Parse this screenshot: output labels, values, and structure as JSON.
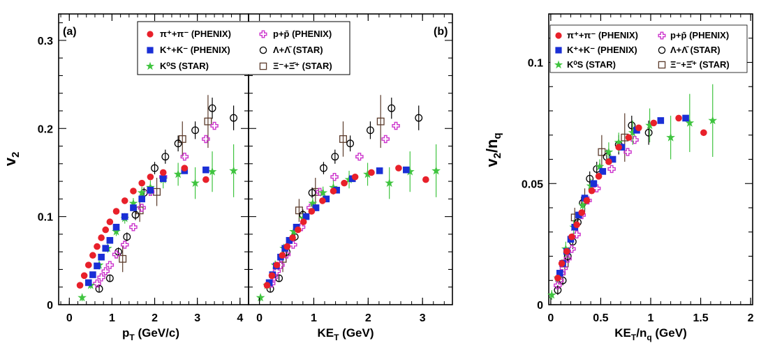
{
  "figure": {
    "common_ylabel": "v2",
    "panels_ab_ylim": [
      0,
      0.33
    ],
    "panels_ab_yticks": [
      "0",
      "0.1",
      "0.2",
      "0.3"
    ],
    "panel_c_ylim": [
      0,
      0.12
    ],
    "panel_c_yticks": [
      "0",
      "0.05",
      "0.1"
    ]
  },
  "legend_entries": [
    {
      "key": "pion",
      "label": "π⁺+π⁻ (PHENIX)",
      "marker": "filled-circle",
      "color": "#e8202a"
    },
    {
      "key": "proton",
      "label": "p+p̄ (PHENIX)",
      "marker": "open-cross",
      "color": "#cc33cc"
    },
    {
      "key": "kaon",
      "label": "K⁺+K⁻ (PHENIX)",
      "marker": "filled-square",
      "color": "#1a2fd6"
    },
    {
      "key": "lambda",
      "label": "Λ+Λ̄ (STAR)",
      "marker": "open-circle",
      "color": "#000000"
    },
    {
      "key": "k0s",
      "label": "K⁰S (STAR)",
      "marker": "filled-star",
      "color": "#3fc43f"
    },
    {
      "key": "xi",
      "label": "Ξ⁻+Ξ̄⁺ (STAR)",
      "marker": "open-square",
      "color": "#5a3a2a"
    }
  ],
  "chart_data": [
    {
      "type": "scatter",
      "panel_label": "(a)",
      "xlabel": "pT (GeV/c)",
      "ylabel": "v2",
      "xlim": [
        -0.25,
        4.2
      ],
      "ylim": [
        0,
        0.33
      ],
      "xticks": [
        "0",
        "1",
        "2",
        "3",
        "4"
      ],
      "series": [
        {
          "name": "π⁺+π⁻ (PHENIX)",
          "key": "pion",
          "x": [
            0.25,
            0.35,
            0.45,
            0.55,
            0.65,
            0.75,
            0.85,
            0.95,
            1.1,
            1.3,
            1.5,
            1.7,
            1.9,
            2.2,
            2.7,
            3.2
          ],
          "y": [
            0.022,
            0.033,
            0.045,
            0.056,
            0.066,
            0.076,
            0.085,
            0.094,
            0.106,
            0.118,
            0.129,
            0.138,
            0.145,
            0.15,
            0.155,
            0.142
          ]
        },
        {
          "name": "K⁺+K⁻ (PHENIX)",
          "key": "kaon",
          "x": [
            0.45,
            0.55,
            0.65,
            0.75,
            0.85,
            0.95,
            1.1,
            1.3,
            1.5,
            1.7,
            1.9,
            2.2,
            2.7,
            3.2
          ],
          "y": [
            0.025,
            0.034,
            0.044,
            0.054,
            0.064,
            0.073,
            0.088,
            0.1,
            0.11,
            0.12,
            0.13,
            0.143,
            0.152,
            0.153
          ]
        },
        {
          "name": "K⁰S (STAR)",
          "key": "k0s",
          "x": [
            0.3,
            0.5,
            0.7,
            0.9,
            1.1,
            1.3,
            1.5,
            1.7,
            1.9,
            2.2,
            2.55,
            2.95,
            3.35,
            3.85
          ],
          "y": [
            0.008,
            0.022,
            0.045,
            0.064,
            0.083,
            0.098,
            0.115,
            0.127,
            0.133,
            0.142,
            0.148,
            0.138,
            0.151,
            0.152
          ],
          "err": [
            0.004,
            0.004,
            0.005,
            0.005,
            0.005,
            0.006,
            0.006,
            0.007,
            0.008,
            0.01,
            0.013,
            0.018,
            0.023,
            0.03
          ]
        },
        {
          "name": "p+p̄ (PHENIX)",
          "key": "proton",
          "x": [
            0.65,
            0.75,
            0.85,
            0.95,
            1.1,
            1.3,
            1.5,
            1.7,
            1.9,
            2.2,
            2.7,
            3.2,
            3.4
          ],
          "y": [
            0.024,
            0.031,
            0.038,
            0.045,
            0.057,
            0.068,
            0.088,
            0.11,
            0.128,
            0.145,
            0.168,
            0.188,
            0.203
          ]
        },
        {
          "name": "Λ+Λ̄ (STAR)",
          "key": "lambda",
          "x": [
            0.7,
            0.95,
            1.15,
            1.35,
            1.55,
            1.75,
            2.0,
            2.25,
            2.55,
            2.95,
            3.35,
            3.85
          ],
          "y": [
            0.018,
            0.03,
            0.06,
            0.077,
            0.102,
            0.127,
            0.155,
            0.168,
            0.183,
            0.198,
            0.223,
            0.212
          ],
          "err": [
            0.004,
            0.004,
            0.005,
            0.005,
            0.006,
            0.006,
            0.007,
            0.008,
            0.009,
            0.01,
            0.012,
            0.014
          ]
        },
        {
          "name": "Ξ⁻+Ξ̄⁺ (STAR)",
          "key": "xi",
          "x": [
            1.25,
            1.65,
            2.05,
            2.65,
            3.25
          ],
          "y": [
            0.052,
            0.107,
            0.128,
            0.188,
            0.208
          ],
          "err": [
            0.015,
            0.013,
            0.016,
            0.02,
            0.03
          ]
        }
      ]
    },
    {
      "type": "scatter",
      "panel_label": "(b)",
      "xlabel": "KET (GeV)",
      "ylabel": "v2",
      "xlim": [
        -0.2,
        3.55
      ],
      "ylim": [
        0,
        0.33
      ],
      "xticks": [
        "0",
        "1",
        "2",
        "3"
      ],
      "series": [
        {
          "name": "π⁺+π⁻ (PHENIX)",
          "key": "pion",
          "x": [
            0.14,
            0.23,
            0.32,
            0.42,
            0.51,
            0.61,
            0.71,
            0.81,
            0.96,
            1.16,
            1.36,
            1.56,
            1.76,
            2.06,
            2.56,
            3.06
          ],
          "y": [
            0.022,
            0.033,
            0.045,
            0.056,
            0.066,
            0.076,
            0.085,
            0.094,
            0.106,
            0.118,
            0.129,
            0.138,
            0.145,
            0.15,
            0.155,
            0.142
          ]
        },
        {
          "name": "K⁺+K⁻ (PHENIX)",
          "key": "kaon",
          "x": [
            0.18,
            0.24,
            0.31,
            0.39,
            0.47,
            0.55,
            0.68,
            0.86,
            1.04,
            1.23,
            1.42,
            1.71,
            2.21,
            2.7
          ],
          "y": [
            0.025,
            0.034,
            0.044,
            0.054,
            0.064,
            0.073,
            0.088,
            0.1,
            0.11,
            0.12,
            0.13,
            0.143,
            0.152,
            0.153
          ]
        },
        {
          "name": "K⁰S (STAR)",
          "key": "k0s",
          "x": [
            0.02,
            0.14,
            0.29,
            0.45,
            0.63,
            0.8,
            0.98,
            1.17,
            1.36,
            1.65,
            1.99,
            2.39,
            2.77,
            3.25
          ],
          "y": [
            0.008,
            0.022,
            0.045,
            0.064,
            0.083,
            0.098,
            0.115,
            0.127,
            0.133,
            0.142,
            0.148,
            0.138,
            0.151,
            0.152
          ],
          "err": [
            0.004,
            0.004,
            0.005,
            0.005,
            0.005,
            0.006,
            0.006,
            0.007,
            0.008,
            0.01,
            0.013,
            0.018,
            0.023,
            0.03
          ]
        },
        {
          "name": "p+p̄ (PHENIX)",
          "key": "proton",
          "x": [
            0.22,
            0.27,
            0.32,
            0.39,
            0.5,
            0.62,
            0.77,
            0.94,
            1.11,
            1.38,
            1.84,
            2.32,
            2.51
          ],
          "y": [
            0.024,
            0.031,
            0.038,
            0.045,
            0.057,
            0.068,
            0.088,
            0.11,
            0.128,
            0.145,
            0.168,
            0.188,
            0.203
          ]
        },
        {
          "name": "Λ+Λ̄ (STAR)",
          "key": "lambda",
          "x": [
            0.2,
            0.36,
            0.5,
            0.65,
            0.8,
            0.97,
            1.18,
            1.39,
            1.67,
            2.04,
            2.43,
            2.93
          ],
          "y": [
            0.018,
            0.03,
            0.06,
            0.077,
            0.102,
            0.127,
            0.155,
            0.168,
            0.183,
            0.198,
            0.223,
            0.212
          ],
          "err": [
            0.004,
            0.004,
            0.005,
            0.005,
            0.006,
            0.006,
            0.007,
            0.008,
            0.009,
            0.01,
            0.012,
            0.014
          ]
        },
        {
          "name": "Ξ⁻+Ξ̄⁺ (STAR)",
          "key": "xi",
          "x": [
            0.43,
            0.73,
            1.03,
            1.54,
            2.23
          ],
          "y": [
            0.052,
            0.107,
            0.128,
            0.188,
            0.208
          ],
          "err": [
            0.015,
            0.013,
            0.016,
            0.02,
            0.03
          ]
        }
      ]
    },
    {
      "type": "scatter",
      "panel_label": "",
      "xlabel": "KET/nq (GeV)",
      "ylabel": "v2/nq",
      "xlim": [
        -0.02,
        2.02
      ],
      "ylim": [
        0,
        0.12
      ],
      "xticks": [
        "0",
        "0.5",
        "1",
        "1.5",
        "2"
      ],
      "series": [
        {
          "name": "π⁺+π⁻ (PHENIX)",
          "key": "pion",
          "x": [
            0.07,
            0.11,
            0.16,
            0.21,
            0.26,
            0.31,
            0.36,
            0.41,
            0.48,
            0.58,
            0.68,
            0.78,
            0.88,
            1.03,
            1.28,
            1.53
          ],
          "y": [
            0.011,
            0.017,
            0.022,
            0.028,
            0.033,
            0.038,
            0.043,
            0.047,
            0.053,
            0.059,
            0.065,
            0.069,
            0.073,
            0.075,
            0.077,
            0.071
          ]
        },
        {
          "name": "K⁺+K⁻ (PHENIX)",
          "key": "kaon",
          "x": [
            0.09,
            0.12,
            0.16,
            0.2,
            0.24,
            0.28,
            0.34,
            0.43,
            0.52,
            0.62,
            0.71,
            0.86,
            1.1,
            1.35
          ],
          "y": [
            0.013,
            0.017,
            0.022,
            0.027,
            0.032,
            0.037,
            0.044,
            0.05,
            0.055,
            0.06,
            0.065,
            0.072,
            0.076,
            0.077
          ]
        },
        {
          "name": "K⁰S (STAR)",
          "key": "k0s",
          "x": [
            0.01,
            0.07,
            0.15,
            0.23,
            0.32,
            0.4,
            0.49,
            0.58,
            0.68,
            0.82,
            0.99,
            1.2,
            1.39,
            1.62
          ],
          "y": [
            0.004,
            0.011,
            0.023,
            0.032,
            0.041,
            0.049,
            0.057,
            0.063,
            0.067,
            0.071,
            0.074,
            0.069,
            0.075,
            0.076
          ],
          "err": [
            0.002,
            0.002,
            0.003,
            0.003,
            0.003,
            0.003,
            0.003,
            0.004,
            0.004,
            0.005,
            0.007,
            0.009,
            0.012,
            0.015
          ]
        },
        {
          "name": "p+p̄ (PHENIX)",
          "key": "proton",
          "x": [
            0.07,
            0.09,
            0.11,
            0.13,
            0.17,
            0.21,
            0.26,
            0.31,
            0.37,
            0.46,
            0.61,
            0.77,
            0.84
          ],
          "y": [
            0.008,
            0.01,
            0.013,
            0.015,
            0.019,
            0.023,
            0.029,
            0.037,
            0.043,
            0.048,
            0.056,
            0.063,
            0.068
          ]
        },
        {
          "name": "Λ+Λ̄ (STAR)",
          "key": "lambda",
          "x": [
            0.07,
            0.12,
            0.17,
            0.22,
            0.27,
            0.32,
            0.39,
            0.46,
            0.56,
            0.68,
            0.81,
            0.98
          ],
          "y": [
            0.006,
            0.01,
            0.02,
            0.026,
            0.034,
            0.042,
            0.052,
            0.056,
            0.061,
            0.066,
            0.074,
            0.071
          ],
          "err": [
            0.002,
            0.002,
            0.002,
            0.003,
            0.003,
            0.003,
            0.003,
            0.003,
            0.003,
            0.004,
            0.004,
            0.005
          ]
        },
        {
          "name": "Ξ⁻+Ξ̄⁺ (STAR)",
          "key": "xi",
          "x": [
            0.14,
            0.24,
            0.34,
            0.51,
            0.74
          ],
          "y": [
            0.017,
            0.036,
            0.043,
            0.063,
            0.069
          ],
          "err": [
            0.005,
            0.004,
            0.005,
            0.007,
            0.01
          ]
        }
      ]
    }
  ]
}
